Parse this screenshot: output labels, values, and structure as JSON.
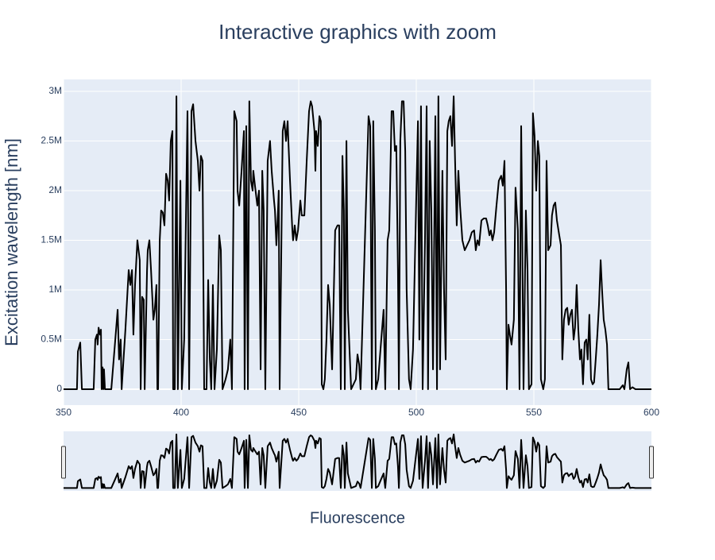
{
  "chart_data": {
    "type": "line",
    "title": "Interactive graphics with zoom",
    "x_label": "Fluorescence",
    "y_label": "Excitation wavelength [nm]",
    "grid": true,
    "rangeslider": true,
    "series": [
      {
        "color": "#000000",
        "x": [
          350.0,
          355.7,
          356.1,
          357.1,
          357.8,
          362.8,
          363.5,
          364.2,
          364.5,
          364.9,
          365.5,
          365.9,
          366.2,
          366.6,
          366.9,
          367.2,
          367.6,
          370.3,
          372.0,
          373.0,
          373.6,
          374.3,
          374.7,
          376.3,
          377.7,
          378.4,
          379.1,
          379.7,
          380.4,
          381.4,
          382.4,
          382.8,
          383.4,
          384.1,
          384.5,
          385.5,
          385.8,
          386.5,
          387.2,
          388.2,
          388.8,
          389.5,
          389.9,
          390.2,
          390.9,
          391.5,
          392.2,
          392.9,
          393.6,
          394.3,
          394.9,
          395.6,
          396.3,
          396.6,
          397.3,
          398.0,
          398.6,
          399.7,
          400.3,
          401.3,
          402.7,
          403.4,
          404.4,
          405.1,
          406.1,
          407.1,
          407.8,
          408.4,
          409.1,
          409.8,
          410.8,
          411.5,
          412.2,
          412.8,
          413.5,
          414.2,
          415.2,
          416.2,
          416.9,
          417.6,
          418.9,
          419.9,
          420.9,
          421.6,
          422.6,
          423.6,
          424.0,
          424.7,
          425.7,
          426.7,
          427.0,
          427.7,
          428.4,
          429.0,
          429.7,
          430.4,
          430.7,
          431.4,
          432.4,
          433.1,
          433.8,
          434.5,
          435.1,
          435.8,
          436.8,
          437.8,
          438.5,
          439.5,
          439.9,
          440.5,
          441.2,
          441.5,
          441.9,
          443.2,
          443.9,
          444.6,
          445.3,
          445.6,
          446.3,
          447.3,
          447.6,
          448.3,
          449.0,
          449.7,
          450.7,
          451.3,
          452.4,
          453.4,
          454.4,
          455.1,
          455.7,
          456.7,
          457.1,
          457.4,
          458.1,
          458.8,
          459.4,
          459.8,
          460.5,
          461.1,
          461.8,
          462.5,
          463.2,
          464.2,
          465.5,
          466.5,
          467.2,
          467.9,
          468.6,
          469.2,
          469.6,
          470.3,
          470.9,
          471.6,
          472.3,
          474.3,
          475.0,
          475.7,
          476.3,
          479.7,
          480.4,
          481.1,
          481.7,
          482.4,
          482.8,
          483.8,
          485.1,
          486.1,
          486.8,
          487.8,
          488.5,
          489.5,
          490.2,
          490.9,
          491.5,
          492.2,
          492.6,
          493.2,
          493.9,
          494.6,
          495.3,
          495.9,
          496.9,
          497.6,
          498.6,
          499.6,
          500.7,
          501.3,
          502.0,
          502.7,
          503.7,
          504.4,
          505.0,
          505.7,
          506.4,
          507.1,
          508.1,
          508.8,
          509.4,
          510.1,
          511.1,
          511.8,
          512.5,
          513.2,
          513.8,
          514.5,
          515.2,
          515.9,
          516.5,
          517.2,
          517.9,
          518.6,
          519.6,
          520.6,
          521.6,
          522.6,
          523.6,
          524.6,
          525.3,
          526.0,
          526.7,
          527.7,
          528.7,
          529.7,
          530.4,
          531.1,
          531.7,
          532.4,
          533.1,
          534.1,
          535.1,
          536.1,
          536.8,
          537.5,
          538.2,
          538.5,
          539.2,
          539.8,
          540.5,
          541.5,
          542.2,
          543.2,
          543.9,
          544.6,
          544.9,
          545.6,
          546.6,
          547.3,
          547.9,
          549.0,
          549.6,
          550.3,
          551.0,
          551.7,
          552.3,
          553.0,
          554.0,
          554.7,
          555.4,
          556.1,
          557.1,
          557.7,
          558.4,
          559.1,
          559.8,
          560.8,
          561.5,
          562.1,
          562.8,
          563.5,
          564.2,
          564.8,
          565.5,
          566.2,
          566.9,
          567.5,
          568.2,
          568.9,
          569.6,
          570.2,
          570.9,
          571.6,
          572.3,
          572.9,
          573.6,
          574.3,
          575.0,
          575.6,
          576.3,
          577.0,
          577.7,
          578.4,
          579.0,
          579.7,
          580.4,
          581.1,
          581.7,
          583.1,
          586.5,
          587.8,
          588.5,
          589.5,
          590.2,
          590.9,
          591.9,
          593.2,
          600.0
        ],
        "values": [
          0,
          0,
          380000,
          470000,
          0,
          0,
          500000,
          550000,
          450000,
          620000,
          550000,
          600000,
          0,
          220000,
          0,
          200000,
          0,
          0,
          500000,
          800000,
          300000,
          500000,
          0,
          600000,
          1200000,
          1050000,
          1200000,
          550000,
          1050000,
          1500000,
          1300000,
          0,
          930000,
          900000,
          0,
          1200000,
          1400000,
          1500000,
          1200000,
          700000,
          800000,
          1050000,
          0,
          0,
          1500000,
          1800000,
          1780000,
          1650000,
          2170000,
          2100000,
          1900000,
          2500000,
          2600000,
          0,
          0,
          2950000,
          0,
          2100000,
          0,
          500000,
          2800000,
          0,
          2800000,
          2870000,
          2500000,
          2300000,
          2000000,
          2350000,
          2300000,
          0,
          0,
          1100000,
          300000,
          0,
          1050000,
          0,
          400000,
          1550000,
          1400000,
          0,
          100000,
          200000,
          500000,
          0,
          2800000,
          2700000,
          2000000,
          1850000,
          2200000,
          2600000,
          0,
          2650000,
          0,
          2900000,
          2100000,
          2000000,
          2200000,
          2050000,
          1850000,
          2000000,
          200000,
          2200000,
          1800000,
          0,
          2300000,
          2500000,
          2200000,
          1900000,
          1800000,
          1450000,
          1800000,
          2000000,
          0,
          2600000,
          2700000,
          2500000,
          2700000,
          2500000,
          2100000,
          1600000,
          1500000,
          1650000,
          1500000,
          1600000,
          1900000,
          1750000,
          1750000,
          2300000,
          2800000,
          2900000,
          2850000,
          2600000,
          2200000,
          2600000,
          2450000,
          2750000,
          2700000,
          50000,
          0,
          100000,
          500000,
          1050000,
          850000,
          200000,
          1600000,
          1650000,
          1650000,
          0,
          2350000,
          1800000,
          0,
          2500000,
          800000,
          400000,
          0,
          100000,
          350000,
          250000,
          0,
          2750000,
          2650000,
          0,
          2700000,
          1600000,
          0,
          100000,
          500000,
          800000,
          0,
          1500000,
          1600000,
          2800000,
          2800000,
          2400000,
          2450000,
          1200000,
          0,
          2500000,
          2900000,
          2900000,
          2400000,
          1000000,
          100000,
          0,
          400000,
          1500000,
          2700000,
          500000,
          2850000,
          0,
          1500000,
          2850000,
          0,
          2500000,
          1800000,
          200000,
          2750000,
          0,
          2950000,
          200000,
          2200000,
          1000000,
          300000,
          2600000,
          2700000,
          2750000,
          2450000,
          2950000,
          2300000,
          1650000,
          2200000,
          1850000,
          1500000,
          1400000,
          1450000,
          1500000,
          1580000,
          1600000,
          1400000,
          1500000,
          1450000,
          1700000,
          1720000,
          1720000,
          1650000,
          1550000,
          1600000,
          1500000,
          1580000,
          1850000,
          2100000,
          2150000,
          2050000,
          2300000,
          1000000,
          0,
          650000,
          550000,
          450000,
          700000,
          2030000,
          1600000,
          0,
          2650000,
          2000000,
          0,
          1800000,
          1200000,
          0,
          50000,
          2780000,
          2550000,
          2000000,
          2500000,
          2350000,
          100000,
          0,
          100000,
          2300000,
          1400000,
          1450000,
          1750000,
          1850000,
          1880000,
          1700000,
          1550000,
          1450000,
          300000,
          700000,
          800000,
          820000,
          650000,
          750000,
          800000,
          500000,
          620000,
          1050000,
          600000,
          300000,
          400000,
          50000,
          470000,
          500000,
          300000,
          750000,
          100000,
          50000,
          70000,
          300000,
          550000,
          850000,
          1300000,
          1000000,
          700000,
          600000,
          450000,
          0,
          0,
          0,
          40000,
          0,
          200000,
          270000,
          0,
          20000,
          0,
          0
        ]
      }
    ],
    "xlim": [
      350,
      600
    ],
    "xticks": [
      350,
      400,
      450,
      500,
      550,
      600
    ],
    "ylim": [
      -160000,
      3120000
    ],
    "yticks": [
      0,
      {
        "value": 500000,
        "label": "0.5M"
      },
      {
        "value": 1000000,
        "label": "1M"
      },
      {
        "value": 1500000,
        "label": "1.5M"
      },
      {
        "value": 2000000,
        "label": "2M"
      },
      {
        "value": 2500000,
        "label": "2.5M"
      },
      {
        "value": 3000000,
        "label": "3M"
      }
    ]
  }
}
